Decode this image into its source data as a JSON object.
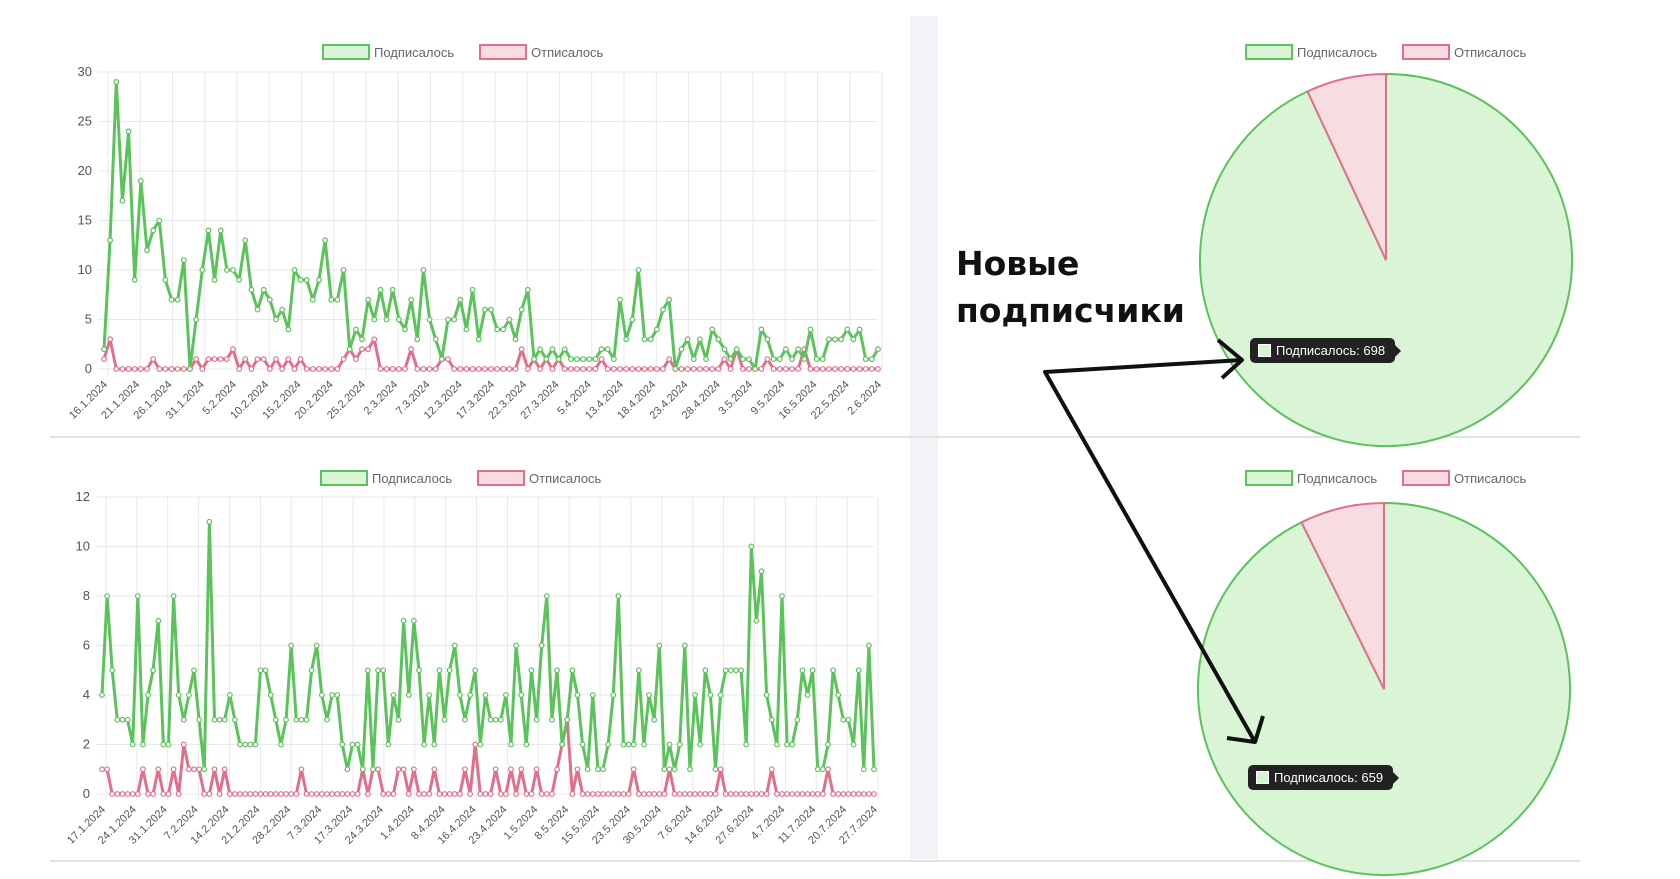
{
  "legend": {
    "subscribed": "Подписалось",
    "unsubscribed": "Отписалось"
  },
  "colors": {
    "subscribed_line": "#5cc25c",
    "subscribed_fill": "#d9f5d6",
    "unsubscribed_line": "#e0708a",
    "unsubscribed_fill": "#f7dce2",
    "grid": "#e9e9e9"
  },
  "annotation": {
    "line1": "Новые",
    "line2": "подписчики"
  },
  "tooltips": {
    "top": "Подписалось: 698",
    "bottom": "Подписалось: 659"
  },
  "chart_data": [
    {
      "type": "line",
      "ylim": [
        0,
        30
      ],
      "yticks": [
        0,
        5,
        10,
        15,
        20,
        25,
        30
      ],
      "xtick_labels": [
        "16.1.2024",
        "21.1.2024",
        "26.1.2024",
        "31.1.2024",
        "5.2.2024",
        "10.2.2024",
        "15.2.2024",
        "20.2.2024",
        "25.2.2024",
        "2.3.2024",
        "7.3.2024",
        "12.3.2024",
        "17.3.2024",
        "22.3.2024",
        "27.3.2024",
        "5.4.2024",
        "13.4.2024",
        "18.4.2024",
        "23.4.2024",
        "28.4.2024",
        "3.5.2024",
        "9.5.2024",
        "16.5.2024",
        "22.5.2024",
        "2.6.2024"
      ],
      "series": [
        {
          "name": "Подписалось",
          "values": [
            2,
            13,
            29,
            17,
            24,
            9,
            19,
            12,
            14,
            15,
            9,
            7,
            7,
            11,
            0,
            5,
            10,
            14,
            9,
            14,
            10,
            10,
            9,
            13,
            8,
            6,
            8,
            7,
            5,
            6,
            4,
            10,
            9,
            9,
            7,
            9,
            13,
            7,
            7,
            10,
            2,
            4,
            3,
            7,
            5,
            8,
            5,
            8,
            5,
            4,
            7,
            3,
            10,
            5,
            3,
            1,
            5,
            5,
            7,
            4,
            8,
            3,
            6,
            6,
            4,
            4,
            5,
            3,
            6,
            8,
            1,
            2,
            1,
            2,
            1,
            2,
            1,
            1,
            1,
            1,
            1,
            2,
            2,
            1,
            7,
            3,
            5,
            10,
            3,
            3,
            4,
            6,
            7,
            0,
            2,
            3,
            1,
            3,
            1,
            4,
            3,
            2,
            1,
            2,
            1,
            1,
            0,
            4,
            3,
            1,
            1,
            2,
            1,
            2,
            1,
            4,
            1,
            1,
            3,
            3,
            3,
            4,
            3,
            4,
            1,
            1,
            2
          ]
        },
        {
          "name": "Отписалось",
          "values": [
            1,
            3,
            0,
            0,
            0,
            0,
            0,
            0,
            1,
            0,
            0,
            0,
            0,
            0,
            0,
            1,
            0,
            1,
            1,
            1,
            1,
            2,
            0,
            1,
            0,
            1,
            1,
            0,
            1,
            0,
            1,
            0,
            1,
            0,
            0,
            0,
            0,
            0,
            0,
            1,
            2,
            1,
            2,
            2,
            3,
            0,
            0,
            0,
            0,
            0,
            2,
            0,
            0,
            0,
            0,
            1,
            1,
            0,
            0,
            0,
            0,
            0,
            0,
            0,
            0,
            0,
            0,
            0,
            2,
            0,
            1,
            0,
            1,
            0,
            1,
            0,
            0,
            0,
            0,
            0,
            0,
            1,
            0,
            0,
            0,
            0,
            0,
            0,
            0,
            0,
            0,
            0,
            1,
            0,
            0,
            0,
            0,
            0,
            0,
            0,
            0,
            1,
            0,
            2,
            0,
            0,
            0,
            0,
            1,
            0,
            0,
            0,
            0,
            0,
            2,
            0,
            0,
            0,
            0,
            0,
            0,
            0,
            0,
            0,
            0,
            0,
            0
          ]
        }
      ]
    },
    {
      "type": "line",
      "ylim": [
        0,
        12
      ],
      "yticks": [
        0,
        2,
        4,
        6,
        8,
        10,
        12
      ],
      "xtick_labels": [
        "17.1.2024",
        "24.1.2024",
        "31.1.2024",
        "7.2.2024",
        "14.2.2024",
        "21.2.2024",
        "28.2.2024",
        "7.3.2024",
        "17.3.2024",
        "24.3.2024",
        "1.4.2024",
        "8.4.2024",
        "16.4.2024",
        "23.4.2024",
        "1.5.2024",
        "8.5.2024",
        "15.5.2024",
        "23.5.2024",
        "30.5.2024",
        "7.6.2024",
        "14.6.2024",
        "27.6.2024",
        "4.7.2024",
        "11.7.2024",
        "20.7.2024",
        "27.7.2024"
      ],
      "series": [
        {
          "name": "Подписалось",
          "values": [
            4,
            8,
            5,
            3,
            3,
            3,
            2,
            8,
            2,
            4,
            5,
            7,
            2,
            2,
            8,
            4,
            3,
            4,
            5,
            3,
            1,
            11,
            3,
            3,
            3,
            4,
            3,
            2,
            2,
            2,
            2,
            5,
            5,
            4,
            3,
            2,
            3,
            6,
            3,
            3,
            3,
            5,
            6,
            4,
            3,
            4,
            4,
            2,
            1,
            2,
            2,
            1,
            5,
            1,
            5,
            5,
            2,
            4,
            3,
            7,
            4,
            7,
            5,
            2,
            4,
            2,
            5,
            3,
            5,
            6,
            4,
            3,
            4,
            5,
            2,
            4,
            3,
            3,
            3,
            4,
            2,
            6,
            4,
            2,
            5,
            3,
            6,
            8,
            3,
            5,
            2,
            3,
            5,
            4,
            2,
            1,
            4,
            1,
            1,
            2,
            4,
            8,
            2,
            2,
            2,
            5,
            2,
            4,
            3,
            6,
            1,
            2,
            1,
            2,
            6,
            1,
            4,
            2,
            5,
            4,
            1,
            4,
            5,
            5,
            5,
            5,
            2,
            10,
            7,
            9,
            4,
            3,
            2,
            8,
            2,
            2,
            3,
            5,
            4,
            5,
            1,
            1,
            2,
            5,
            4,
            3,
            3,
            2,
            5,
            1,
            6,
            1
          ]
        },
        {
          "name": "Отписалось",
          "values": [
            1,
            1,
            0,
            0,
            0,
            0,
            0,
            0,
            1,
            0,
            0,
            1,
            0,
            0,
            1,
            0,
            2,
            1,
            1,
            1,
            0,
            0,
            1,
            0,
            1,
            0,
            0,
            0,
            0,
            0,
            0,
            0,
            0,
            0,
            0,
            0,
            0,
            0,
            0,
            1,
            0,
            0,
            0,
            0,
            0,
            0,
            0,
            0,
            0,
            0,
            0,
            1,
            0,
            1,
            1,
            0,
            0,
            0,
            1,
            1,
            0,
            1,
            0,
            0,
            0,
            1,
            0,
            0,
            0,
            0,
            0,
            1,
            0,
            2,
            0,
            0,
            0,
            1,
            0,
            0,
            1,
            0,
            1,
            0,
            0,
            1,
            0,
            0,
            0,
            1,
            2,
            3,
            0,
            1,
            0,
            0,
            0,
            0,
            0,
            0,
            0,
            0,
            0,
            0,
            1,
            0,
            0,
            0,
            0,
            0,
            0,
            1,
            0,
            0,
            0,
            0,
            0,
            0,
            0,
            0,
            0,
            1,
            0,
            0,
            0,
            0,
            0,
            0,
            0,
            0,
            0,
            1,
            0,
            0,
            0,
            0,
            0,
            0,
            0,
            0,
            0,
            0,
            1,
            0,
            0,
            0,
            0,
            0,
            0,
            0,
            0,
            0
          ]
        }
      ]
    },
    {
      "type": "pie",
      "categories": [
        "Подписалось",
        "Отписалось"
      ],
      "values": [
        698,
        52
      ]
    },
    {
      "type": "pie",
      "categories": [
        "Подписалось",
        "Отписалось"
      ],
      "values": [
        659,
        52
      ]
    }
  ]
}
